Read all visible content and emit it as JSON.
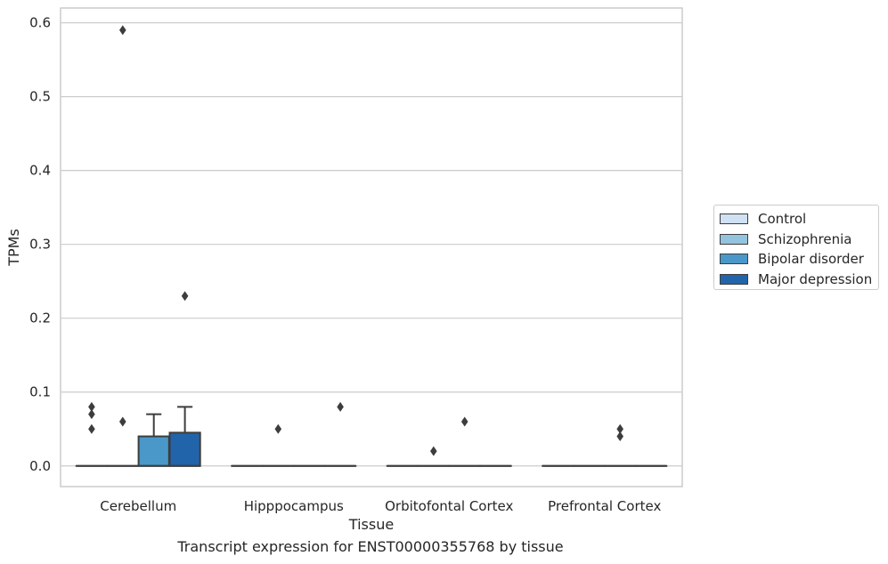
{
  "chart_data": {
    "type": "box",
    "xlabel": "Tissue",
    "ylabel": "TPMs",
    "ylim": [
      -0.028,
      0.62
    ],
    "yticks": [
      0.0,
      0.1,
      0.2,
      0.3,
      0.4,
      0.5,
      0.6
    ],
    "ytick_labels": [
      "0.0",
      "0.1",
      "0.2",
      "0.3",
      "0.4",
      "0.5",
      "0.6"
    ],
    "grid": true,
    "legend_position": "right",
    "categories": [
      "Cerebellum",
      "Hipppocampus",
      "Orbitofontal Cortex",
      "Prefrontal Cortex"
    ],
    "series": [
      {
        "name": "Control",
        "color": "#cfe1f2",
        "boxes": [
          {
            "q1": 0,
            "median": 0,
            "q3": 0,
            "whisker_low": 0,
            "whisker_high": 0,
            "outliers": [
              0.05,
              0.07,
              0.08
            ]
          },
          {
            "q1": 0,
            "median": 0,
            "q3": 0,
            "whisker_low": 0,
            "whisker_high": 0,
            "outliers": []
          },
          {
            "q1": 0,
            "median": 0,
            "q3": 0,
            "whisker_low": 0,
            "whisker_high": 0,
            "outliers": []
          },
          {
            "q1": 0,
            "median": 0,
            "q3": 0,
            "whisker_low": 0,
            "whisker_high": 0,
            "outliers": []
          }
        ]
      },
      {
        "name": "Schizophrenia",
        "color": "#93c4de",
        "boxes": [
          {
            "q1": 0,
            "median": 0,
            "q3": 0,
            "whisker_low": 0,
            "whisker_high": 0,
            "outliers": [
              0.06,
              0.59
            ]
          },
          {
            "q1": 0,
            "median": 0,
            "q3": 0,
            "whisker_low": 0,
            "whisker_high": 0,
            "outliers": [
              0.05
            ]
          },
          {
            "q1": 0,
            "median": 0,
            "q3": 0,
            "whisker_low": 0,
            "whisker_high": 0,
            "outliers": [
              0.02
            ]
          },
          {
            "q1": 0,
            "median": 0,
            "q3": 0,
            "whisker_low": 0,
            "whisker_high": 0,
            "outliers": []
          }
        ]
      },
      {
        "name": "Bipolar disorder",
        "color": "#4a98c9",
        "boxes": [
          {
            "q1": 0,
            "median": 0,
            "q3": 0.04,
            "whisker_low": 0,
            "whisker_high": 0.07,
            "outliers": []
          },
          {
            "q1": 0,
            "median": 0,
            "q3": 0,
            "whisker_low": 0,
            "whisker_high": 0,
            "outliers": []
          },
          {
            "q1": 0,
            "median": 0,
            "q3": 0,
            "whisker_low": 0,
            "whisker_high": 0,
            "outliers": [
              0.06
            ]
          },
          {
            "q1": 0,
            "median": 0,
            "q3": 0,
            "whisker_low": 0,
            "whisker_high": 0,
            "outliers": [
              0.04,
              0.05
            ]
          }
        ]
      },
      {
        "name": "Major depression",
        "color": "#2164aa",
        "boxes": [
          {
            "q1": 0,
            "median": 0,
            "q3": 0.045,
            "whisker_low": 0,
            "whisker_high": 0.08,
            "outliers": [
              0.23
            ]
          },
          {
            "q1": 0,
            "median": 0,
            "q3": 0,
            "whisker_low": 0,
            "whisker_high": 0,
            "outliers": [
              0.08
            ]
          },
          {
            "q1": 0,
            "median": 0,
            "q3": 0,
            "whisker_low": 0,
            "whisker_high": 0,
            "outliers": []
          },
          {
            "q1": 0,
            "median": 0,
            "q3": 0,
            "whisker_low": 0,
            "whisker_high": 0,
            "outliers": []
          }
        ]
      }
    ],
    "caption": "Transcript expression for ENST00000355768 by tissue"
  },
  "colors": {
    "grid": "#cccccc",
    "frame": "#cccccc",
    "box_edge": "#3d3d3d",
    "outlier": "#3d3d3d",
    "text": "#262626"
  }
}
